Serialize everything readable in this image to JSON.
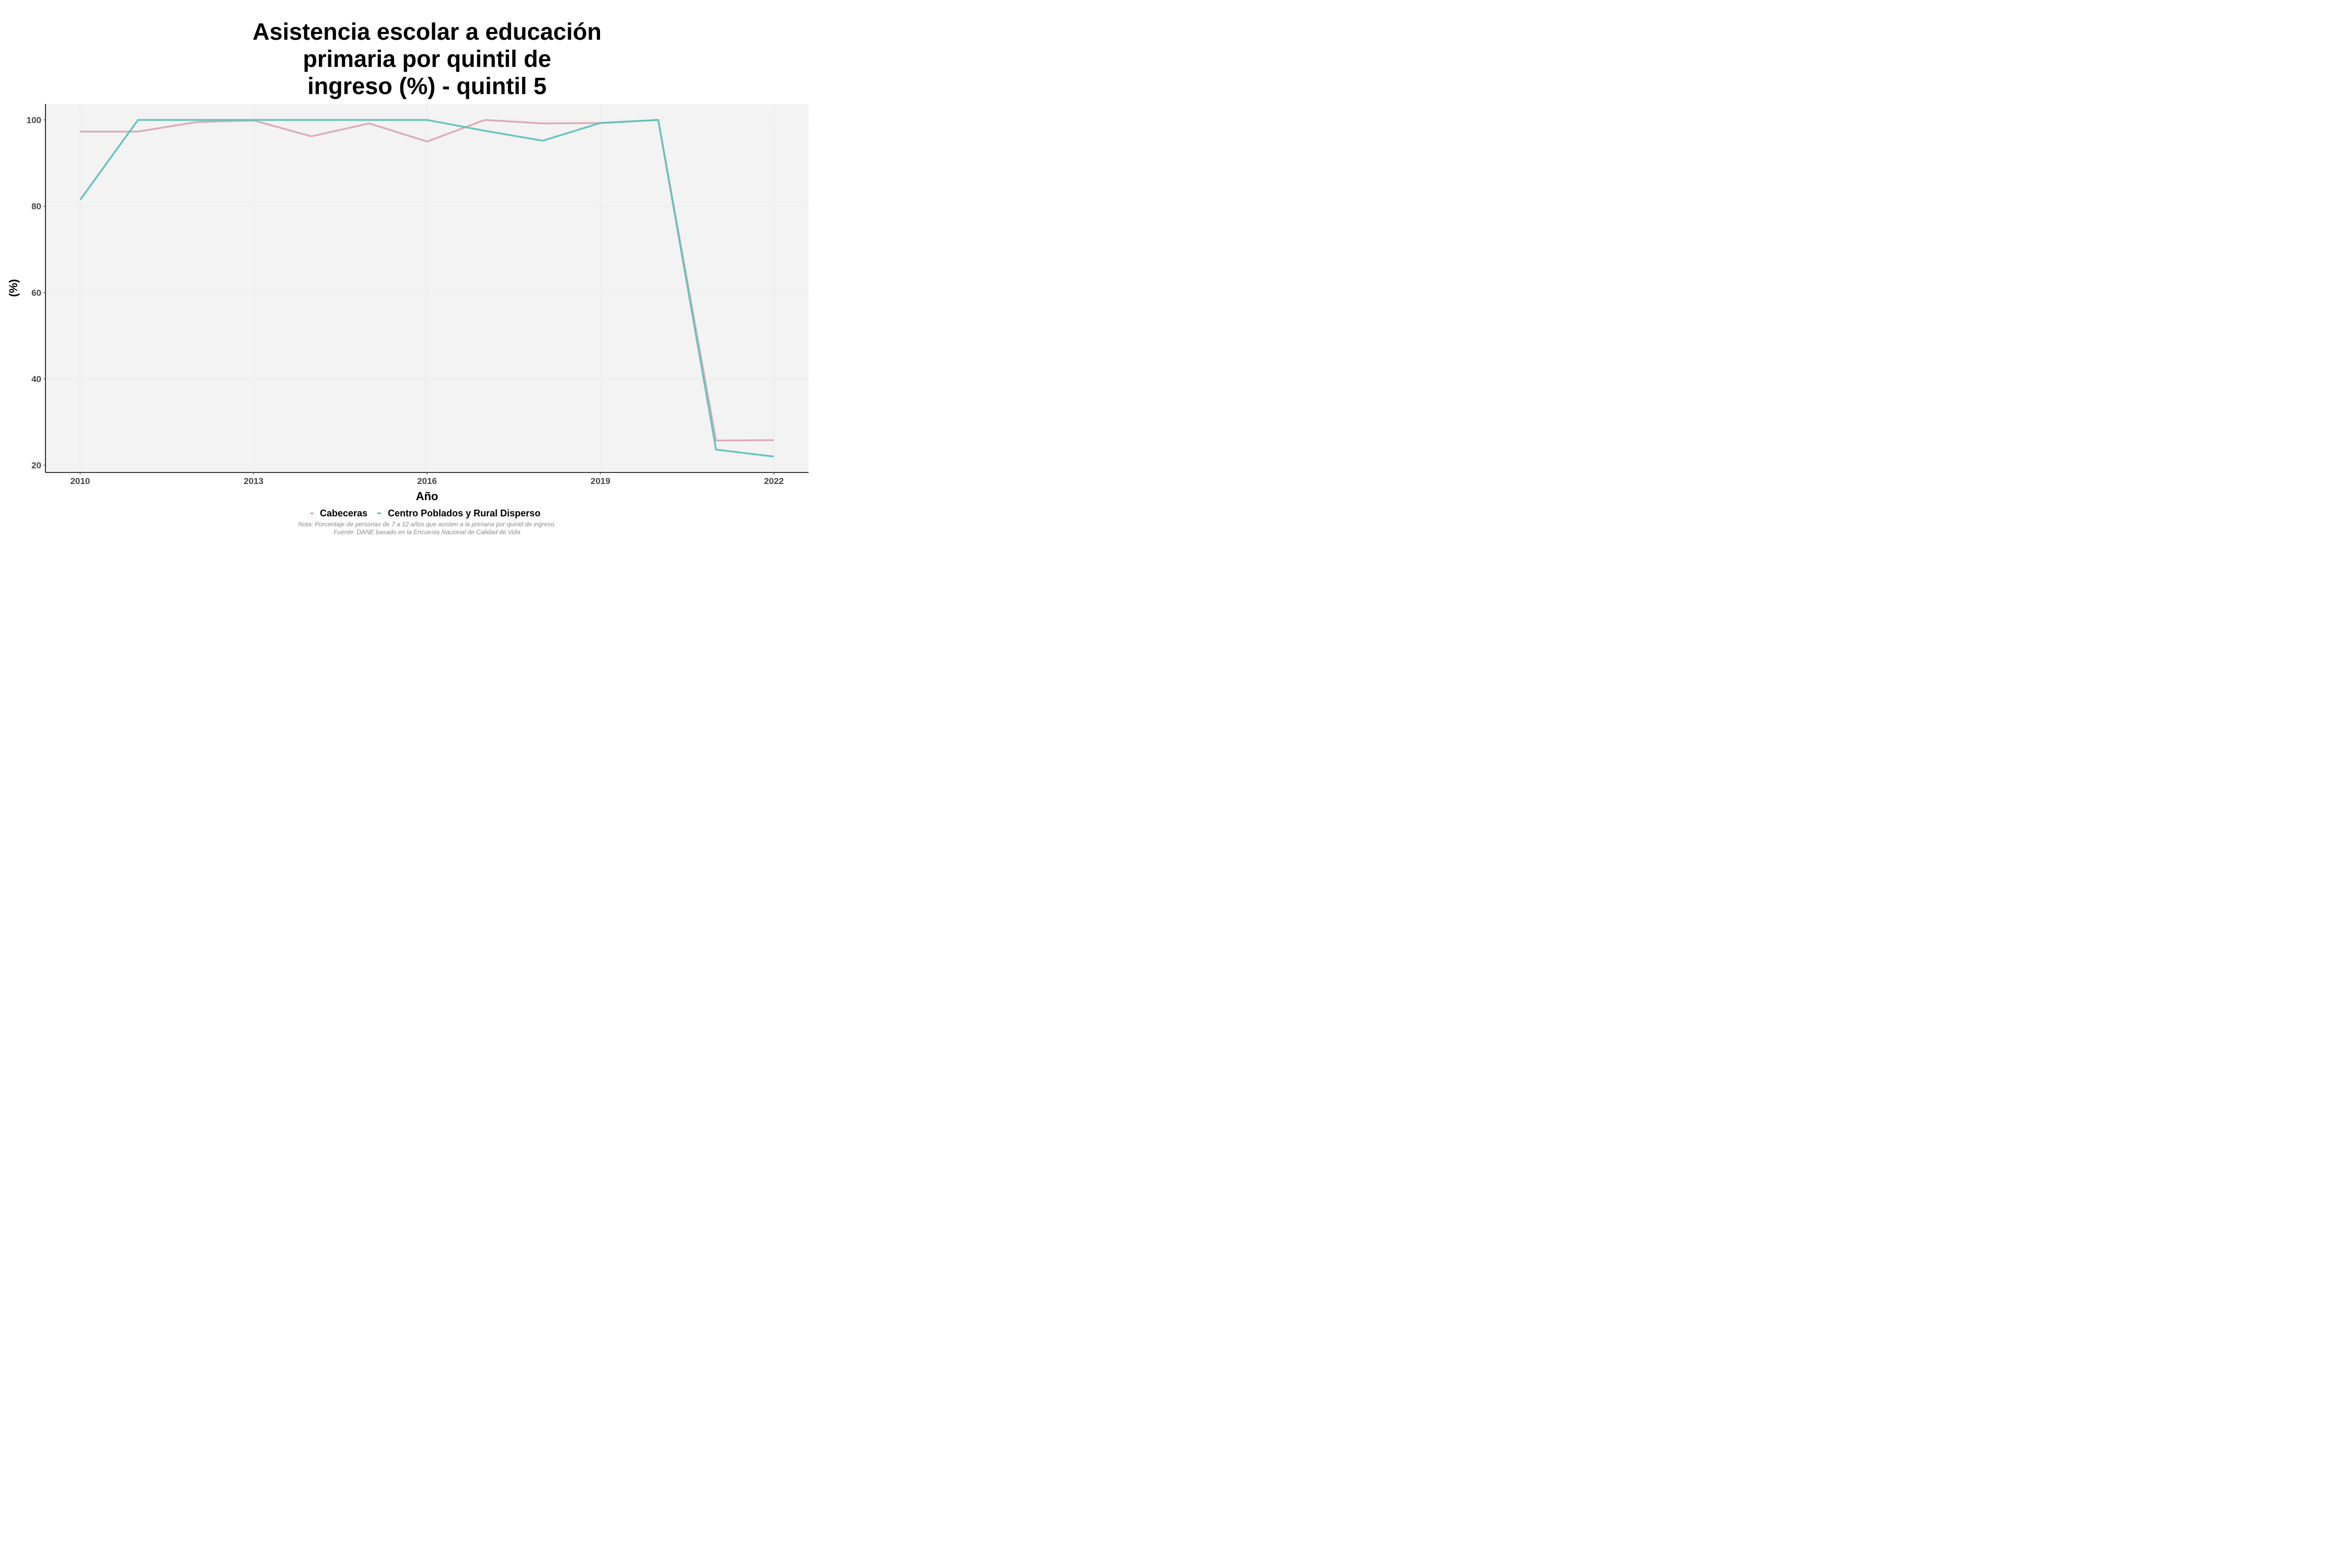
{
  "chart_data": {
    "type": "line",
    "title": [
      "Asistencia escolar a educación",
      "primaria por quintil de",
      "ingreso (%) - quintil 5"
    ],
    "xlabel": "Año",
    "ylabel": "(%)",
    "x": [
      2010,
      2011,
      2012,
      2013,
      2014,
      2015,
      2016,
      2017,
      2018,
      2019,
      2020,
      2021,
      2022
    ],
    "xticks": [
      2010,
      2013,
      2016,
      2019,
      2022
    ],
    "yticks": [
      20,
      40,
      60,
      80,
      100
    ],
    "xlim": [
      2009.4,
      2022.6
    ],
    "ylim": [
      18.3,
      103.7
    ],
    "grid": true,
    "legend_position": "bottom",
    "series": [
      {
        "name": "Cabeceras",
        "color": "#d9a8b3",
        "values": [
          97.3,
          97.3,
          99.5,
          99.9,
          96.2,
          99.2,
          95.0,
          100.0,
          99.2,
          99.3,
          100.0,
          25.7,
          25.8
        ]
      },
      {
        "name": "Centro Poblados y Rural Disperso",
        "color": "#5fc1b9",
        "values": [
          81.5,
          100.0,
          100.0,
          100.0,
          100.0,
          100.0,
          100.0,
          97.5,
          95.2,
          99.3,
          100.0,
          23.6,
          22.0
        ]
      }
    ],
    "notes": [
      "Nota: Porcentaje de personas de 7 a 12 años que asisten a la primaria por quintil de ingreso.",
      "Fuente: DANE basado en la Encuesta Nacional de Calidad de Vida"
    ]
  }
}
